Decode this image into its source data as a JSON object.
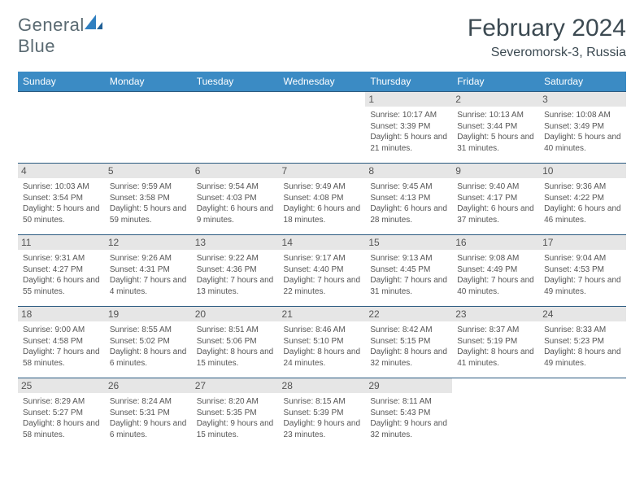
{
  "logo": {
    "word1": "General",
    "word2": "Blue"
  },
  "title": "February 2024",
  "location": "Severomorsk-3, Russia",
  "colors": {
    "header_bg": "#3b8bc4",
    "header_text": "#ffffff",
    "border": "#2a5a80",
    "daynum_bg": "#e6e6e6",
    "body_text": "#555555",
    "title_text": "#3c4a52",
    "logo_accent": "#2f7fc0"
  },
  "weekdays": [
    "Sunday",
    "Monday",
    "Tuesday",
    "Wednesday",
    "Thursday",
    "Friday",
    "Saturday"
  ],
  "layout": {
    "cols": 7,
    "rows": 5,
    "first_weekday_index": 4,
    "days_in_month": 29
  },
  "days": {
    "1": {
      "sunrise": "10:17 AM",
      "sunset": "3:39 PM",
      "daylight": "5 hours and 21 minutes."
    },
    "2": {
      "sunrise": "10:13 AM",
      "sunset": "3:44 PM",
      "daylight": "5 hours and 31 minutes."
    },
    "3": {
      "sunrise": "10:08 AM",
      "sunset": "3:49 PM",
      "daylight": "5 hours and 40 minutes."
    },
    "4": {
      "sunrise": "10:03 AM",
      "sunset": "3:54 PM",
      "daylight": "5 hours and 50 minutes."
    },
    "5": {
      "sunrise": "9:59 AM",
      "sunset": "3:58 PM",
      "daylight": "5 hours and 59 minutes."
    },
    "6": {
      "sunrise": "9:54 AM",
      "sunset": "4:03 PM",
      "daylight": "6 hours and 9 minutes."
    },
    "7": {
      "sunrise": "9:49 AM",
      "sunset": "4:08 PM",
      "daylight": "6 hours and 18 minutes."
    },
    "8": {
      "sunrise": "9:45 AM",
      "sunset": "4:13 PM",
      "daylight": "6 hours and 28 minutes."
    },
    "9": {
      "sunrise": "9:40 AM",
      "sunset": "4:17 PM",
      "daylight": "6 hours and 37 minutes."
    },
    "10": {
      "sunrise": "9:36 AM",
      "sunset": "4:22 PM",
      "daylight": "6 hours and 46 minutes."
    },
    "11": {
      "sunrise": "9:31 AM",
      "sunset": "4:27 PM",
      "daylight": "6 hours and 55 minutes."
    },
    "12": {
      "sunrise": "9:26 AM",
      "sunset": "4:31 PM",
      "daylight": "7 hours and 4 minutes."
    },
    "13": {
      "sunrise": "9:22 AM",
      "sunset": "4:36 PM",
      "daylight": "7 hours and 13 minutes."
    },
    "14": {
      "sunrise": "9:17 AM",
      "sunset": "4:40 PM",
      "daylight": "7 hours and 22 minutes."
    },
    "15": {
      "sunrise": "9:13 AM",
      "sunset": "4:45 PM",
      "daylight": "7 hours and 31 minutes."
    },
    "16": {
      "sunrise": "9:08 AM",
      "sunset": "4:49 PM",
      "daylight": "7 hours and 40 minutes."
    },
    "17": {
      "sunrise": "9:04 AM",
      "sunset": "4:53 PM",
      "daylight": "7 hours and 49 minutes."
    },
    "18": {
      "sunrise": "9:00 AM",
      "sunset": "4:58 PM",
      "daylight": "7 hours and 58 minutes."
    },
    "19": {
      "sunrise": "8:55 AM",
      "sunset": "5:02 PM",
      "daylight": "8 hours and 6 minutes."
    },
    "20": {
      "sunrise": "8:51 AM",
      "sunset": "5:06 PM",
      "daylight": "8 hours and 15 minutes."
    },
    "21": {
      "sunrise": "8:46 AM",
      "sunset": "5:10 PM",
      "daylight": "8 hours and 24 minutes."
    },
    "22": {
      "sunrise": "8:42 AM",
      "sunset": "5:15 PM",
      "daylight": "8 hours and 32 minutes."
    },
    "23": {
      "sunrise": "8:37 AM",
      "sunset": "5:19 PM",
      "daylight": "8 hours and 41 minutes."
    },
    "24": {
      "sunrise": "8:33 AM",
      "sunset": "5:23 PM",
      "daylight": "8 hours and 49 minutes."
    },
    "25": {
      "sunrise": "8:29 AM",
      "sunset": "5:27 PM",
      "daylight": "8 hours and 58 minutes."
    },
    "26": {
      "sunrise": "8:24 AM",
      "sunset": "5:31 PM",
      "daylight": "9 hours and 6 minutes."
    },
    "27": {
      "sunrise": "8:20 AM",
      "sunset": "5:35 PM",
      "daylight": "9 hours and 15 minutes."
    },
    "28": {
      "sunrise": "8:15 AM",
      "sunset": "5:39 PM",
      "daylight": "9 hours and 23 minutes."
    },
    "29": {
      "sunrise": "8:11 AM",
      "sunset": "5:43 PM",
      "daylight": "9 hours and 32 minutes."
    }
  },
  "labels": {
    "sunrise": "Sunrise:",
    "sunset": "Sunset:",
    "daylight": "Daylight:"
  }
}
